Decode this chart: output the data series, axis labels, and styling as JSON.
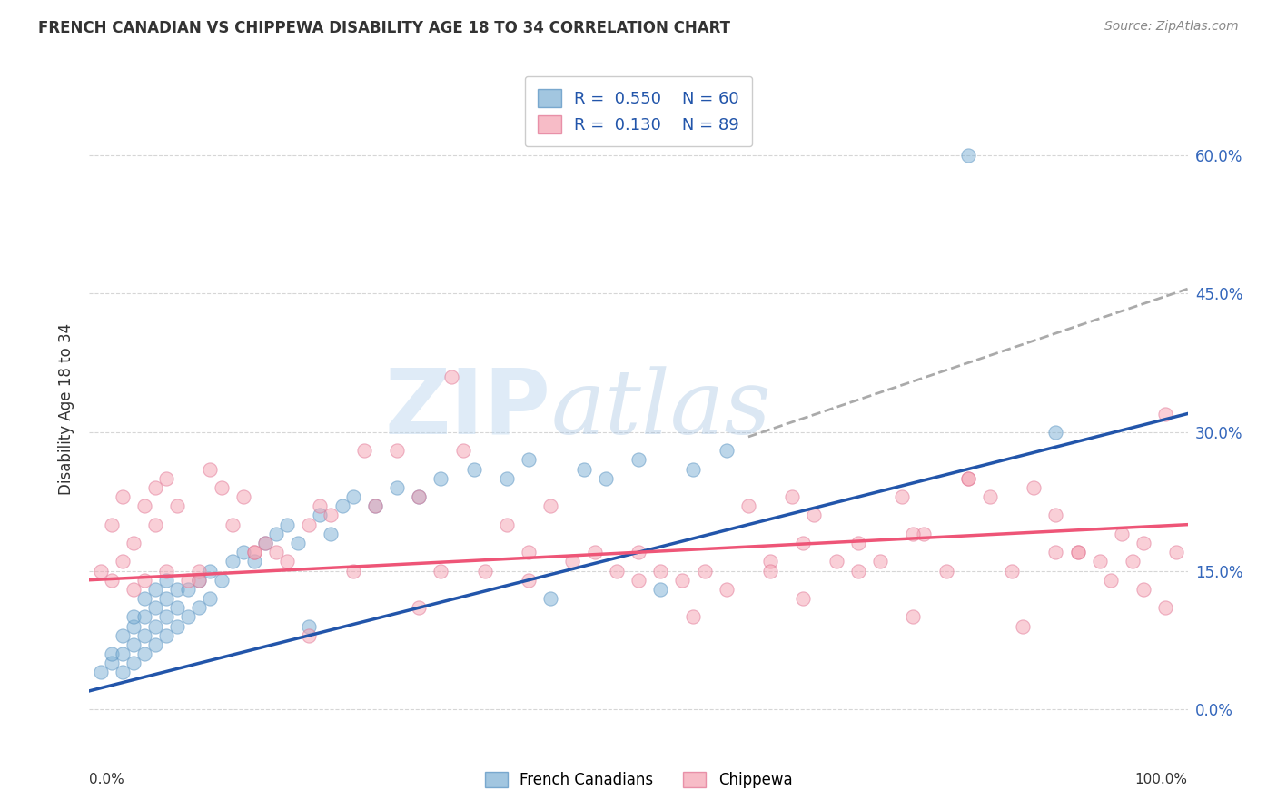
{
  "title": "FRENCH CANADIAN VS CHIPPEWA DISABILITY AGE 18 TO 34 CORRELATION CHART",
  "source": "Source: ZipAtlas.com",
  "ylabel": "Disability Age 18 to 34",
  "watermark_zip": "ZIP",
  "watermark_atlas": "atlas",
  "blue_color": "#7BAFD4",
  "blue_edge_color": "#5590C0",
  "pink_color": "#F4A0B0",
  "pink_edge_color": "#E07090",
  "blue_line_color": "#2255AA",
  "pink_line_color": "#EE5577",
  "dashed_line_color": "#AAAAAA",
  "legend_r1_val": "0.550",
  "legend_n1_val": "60",
  "legend_r2_val": "0.130",
  "legend_n2_val": "89",
  "xlim": [
    0.0,
    1.0
  ],
  "ylim": [
    -0.03,
    0.68
  ],
  "yticks": [
    0.0,
    0.15,
    0.3,
    0.45,
    0.6
  ],
  "blue_regline_x": [
    0.0,
    1.0
  ],
  "blue_regline_y": [
    0.02,
    0.32
  ],
  "pink_regline_x": [
    0.0,
    1.0
  ],
  "pink_regline_y": [
    0.14,
    0.2
  ],
  "dashed_line_x": [
    0.6,
    1.0
  ],
  "dashed_line_y": [
    0.295,
    0.455
  ],
  "fc_x": [
    0.01,
    0.02,
    0.02,
    0.03,
    0.03,
    0.03,
    0.04,
    0.04,
    0.04,
    0.04,
    0.05,
    0.05,
    0.05,
    0.05,
    0.06,
    0.06,
    0.06,
    0.06,
    0.07,
    0.07,
    0.07,
    0.07,
    0.08,
    0.08,
    0.08,
    0.09,
    0.09,
    0.1,
    0.1,
    0.11,
    0.11,
    0.12,
    0.13,
    0.14,
    0.15,
    0.16,
    0.17,
    0.18,
    0.19,
    0.2,
    0.21,
    0.22,
    0.23,
    0.24,
    0.26,
    0.28,
    0.3,
    0.32,
    0.35,
    0.38,
    0.4,
    0.42,
    0.45,
    0.47,
    0.5,
    0.52,
    0.55,
    0.58,
    0.8,
    0.88
  ],
  "fc_y": [
    0.04,
    0.05,
    0.06,
    0.04,
    0.06,
    0.08,
    0.05,
    0.07,
    0.09,
    0.1,
    0.06,
    0.08,
    0.1,
    0.12,
    0.07,
    0.09,
    0.11,
    0.13,
    0.08,
    0.1,
    0.12,
    0.14,
    0.09,
    0.11,
    0.13,
    0.1,
    0.13,
    0.11,
    0.14,
    0.12,
    0.15,
    0.14,
    0.16,
    0.17,
    0.16,
    0.18,
    0.19,
    0.2,
    0.18,
    0.09,
    0.21,
    0.19,
    0.22,
    0.23,
    0.22,
    0.24,
    0.23,
    0.25,
    0.26,
    0.25,
    0.27,
    0.12,
    0.26,
    0.25,
    0.27,
    0.13,
    0.26,
    0.28,
    0.6,
    0.3
  ],
  "ch_x": [
    0.01,
    0.02,
    0.02,
    0.03,
    0.03,
    0.04,
    0.04,
    0.05,
    0.05,
    0.06,
    0.06,
    0.07,
    0.07,
    0.08,
    0.09,
    0.1,
    0.11,
    0.12,
    0.13,
    0.14,
    0.15,
    0.16,
    0.17,
    0.18,
    0.2,
    0.21,
    0.22,
    0.24,
    0.26,
    0.28,
    0.3,
    0.32,
    0.34,
    0.36,
    0.38,
    0.4,
    0.42,
    0.44,
    0.46,
    0.48,
    0.5,
    0.52,
    0.54,
    0.56,
    0.58,
    0.6,
    0.62,
    0.64,
    0.66,
    0.68,
    0.7,
    0.72,
    0.74,
    0.76,
    0.78,
    0.8,
    0.82,
    0.84,
    0.86,
    0.88,
    0.9,
    0.92,
    0.94,
    0.96,
    0.98,
    0.99,
    0.25,
    0.33,
    0.5,
    0.62,
    0.65,
    0.7,
    0.75,
    0.8,
    0.85,
    0.88,
    0.9,
    0.93,
    0.96,
    0.98,
    0.1,
    0.15,
    0.2,
    0.3,
    0.4,
    0.55,
    0.65,
    0.75,
    0.95
  ],
  "ch_y": [
    0.15,
    0.14,
    0.2,
    0.16,
    0.23,
    0.13,
    0.18,
    0.22,
    0.14,
    0.24,
    0.2,
    0.15,
    0.25,
    0.22,
    0.14,
    0.15,
    0.26,
    0.24,
    0.2,
    0.23,
    0.17,
    0.18,
    0.17,
    0.16,
    0.2,
    0.22,
    0.21,
    0.15,
    0.22,
    0.28,
    0.23,
    0.15,
    0.28,
    0.15,
    0.2,
    0.17,
    0.22,
    0.16,
    0.17,
    0.15,
    0.17,
    0.15,
    0.14,
    0.15,
    0.13,
    0.22,
    0.16,
    0.23,
    0.21,
    0.16,
    0.18,
    0.16,
    0.23,
    0.19,
    0.15,
    0.25,
    0.23,
    0.15,
    0.24,
    0.21,
    0.17,
    0.16,
    0.19,
    0.18,
    0.11,
    0.17,
    0.28,
    0.36,
    0.14,
    0.15,
    0.18,
    0.15,
    0.19,
    0.25,
    0.09,
    0.17,
    0.17,
    0.14,
    0.13,
    0.32,
    0.14,
    0.17,
    0.08,
    0.11,
    0.14,
    0.1,
    0.12,
    0.1,
    0.16
  ]
}
